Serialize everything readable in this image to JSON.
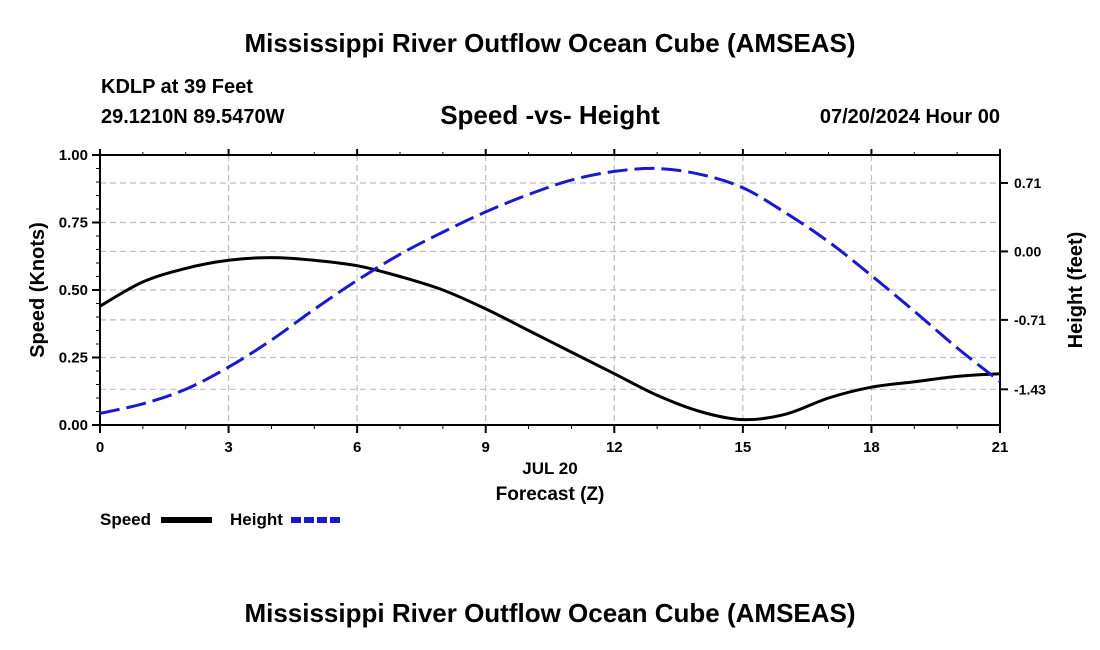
{
  "header": {
    "title": "Mississippi River Outflow Ocean Cube (AMSEAS)",
    "station": "KDLP at 39 Feet",
    "coords": "29.1210N  89.5470W",
    "subtitle": "Speed -vs- Height",
    "datetime": "07/20/2024 Hour 00"
  },
  "footer": {
    "title": "Mississippi River Outflow Ocean Cube (AMSEAS)"
  },
  "chart_data": {
    "type": "line",
    "title": "Speed -vs- Height",
    "xlabel": "Forecast (Z)",
    "xlabel_date": "JUL 20",
    "ylabel": "Speed (Knots)",
    "y2label": "Height (feet)",
    "xlim": [
      0,
      21
    ],
    "ylim": [
      0,
      1
    ],
    "y2lim": [
      -1.8,
      1.0
    ],
    "x_ticks": [
      0,
      3,
      6,
      9,
      12,
      15,
      18,
      21
    ],
    "x_tick_labels": [
      "0",
      "3",
      "6",
      "9",
      "12",
      "15",
      "18",
      "21"
    ],
    "y_ticks": [
      0,
      0.25,
      0.5,
      0.75,
      1.0
    ],
    "y_tick_labels": [
      "0.00",
      "0.25",
      "0.50",
      "0.75",
      "1.00"
    ],
    "y2_ticks": [
      -1.43,
      -0.71,
      0.0,
      0.71
    ],
    "y2_tick_labels": [
      "-1.43",
      "-0.71",
      "0.00",
      "0.71"
    ],
    "grid": true,
    "legend_position": "bottom-left",
    "series": [
      {
        "name": "Speed",
        "axis": "left",
        "color": "#000000",
        "style": "solid",
        "x": [
          0,
          1,
          2,
          3,
          4,
          5,
          6,
          7,
          8,
          9,
          10,
          11,
          12,
          13,
          14,
          15,
          16,
          17,
          18,
          19,
          20,
          21
        ],
        "values": [
          0.44,
          0.53,
          0.58,
          0.61,
          0.62,
          0.61,
          0.59,
          0.55,
          0.5,
          0.43,
          0.35,
          0.27,
          0.19,
          0.11,
          0.05,
          0.02,
          0.04,
          0.1,
          0.14,
          0.16,
          0.18,
          0.19
        ]
      },
      {
        "name": "Height",
        "axis": "right",
        "color": "#1a1acc",
        "style": "dashed",
        "x": [
          0,
          1,
          2,
          3,
          4,
          5,
          6,
          7,
          8,
          9,
          10,
          11,
          12,
          13,
          14,
          15,
          16,
          17,
          18,
          19,
          20,
          21
        ],
        "values": [
          -1.68,
          -1.58,
          -1.43,
          -1.2,
          -0.92,
          -0.6,
          -0.3,
          -0.03,
          0.2,
          0.41,
          0.59,
          0.74,
          0.83,
          0.86,
          0.8,
          0.66,
          0.4,
          0.1,
          -0.25,
          -0.62,
          -1.0,
          -1.35
        ]
      }
    ]
  }
}
